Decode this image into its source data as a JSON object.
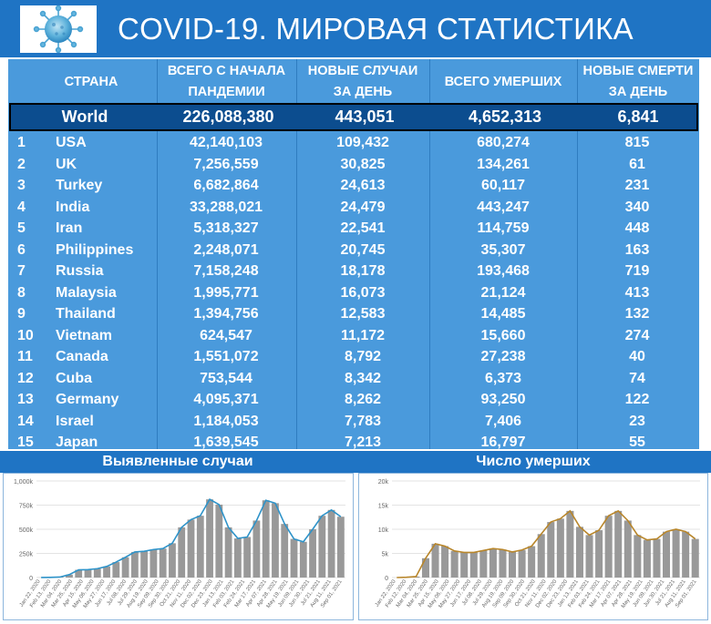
{
  "header": {
    "title": "COVID-19. МИРОВАЯ СТАТИСТИКА",
    "logo_icon": "coronavirus-icon",
    "bg_color": "#1f74c4"
  },
  "table": {
    "columns": {
      "country": "СТРАНА",
      "total_line1": "ВСЕГО С НАЧАЛА",
      "total_line2": "ПАНДЕМИИ",
      "new_line1": "НОВЫЕ СЛУЧАИ",
      "new_line2": "ЗА ДЕНЬ",
      "deaths": "ВСЕГО УМЕРШИХ",
      "newd_line1": "НОВЫЕ СМЕРТИ",
      "newd_line2": "ЗА ДЕНЬ"
    },
    "world": {
      "name": "World",
      "total": "226,088,380",
      "new_cases": "443,051",
      "deaths": "4,652,313",
      "new_deaths": "6,841"
    },
    "rows": [
      {
        "rank": "1",
        "country": "USA",
        "total": "42,140,103",
        "new_cases": "109,432",
        "deaths": "680,274",
        "new_deaths": "815"
      },
      {
        "rank": "2",
        "country": "UK",
        "total": "7,256,559",
        "new_cases": "30,825",
        "deaths": "134,261",
        "new_deaths": "61"
      },
      {
        "rank": "3",
        "country": "Turkey",
        "total": "6,682,864",
        "new_cases": "24,613",
        "deaths": "60,117",
        "new_deaths": "231"
      },
      {
        "rank": "4",
        "country": "India",
        "total": "33,288,021",
        "new_cases": "24,479",
        "deaths": "443,247",
        "new_deaths": "340"
      },
      {
        "rank": "5",
        "country": "Iran",
        "total": "5,318,327",
        "new_cases": "22,541",
        "deaths": "114,759",
        "new_deaths": "448"
      },
      {
        "rank": "6",
        "country": "Philippines",
        "total": "2,248,071",
        "new_cases": "20,745",
        "deaths": "35,307",
        "new_deaths": "163"
      },
      {
        "rank": "7",
        "country": "Russia",
        "total": "7,158,248",
        "new_cases": "18,178",
        "deaths": "193,468",
        "new_deaths": "719"
      },
      {
        "rank": "8",
        "country": "Malaysia",
        "total": "1,995,771",
        "new_cases": "16,073",
        "deaths": "21,124",
        "new_deaths": "413"
      },
      {
        "rank": "9",
        "country": "Thailand",
        "total": "1,394,756",
        "new_cases": "12,583",
        "deaths": "14,485",
        "new_deaths": "132"
      },
      {
        "rank": "10",
        "country": "Vietnam",
        "total": "624,547",
        "new_cases": "11,172",
        "deaths": "15,660",
        "new_deaths": "274"
      },
      {
        "rank": "11",
        "country": "Canada",
        "total": "1,551,072",
        "new_cases": "8,792",
        "deaths": "27,238",
        "new_deaths": "40"
      },
      {
        "rank": "12",
        "country": "Cuba",
        "total": "753,544",
        "new_cases": "8,342",
        "deaths": "6,373",
        "new_deaths": "74"
      },
      {
        "rank": "13",
        "country": "Germany",
        "total": "4,095,371",
        "new_cases": "8,262",
        "deaths": "93,250",
        "new_deaths": "122"
      },
      {
        "rank": "14",
        "country": "Israel",
        "total": "1,184,053",
        "new_cases": "7,783",
        "deaths": "7,406",
        "new_deaths": "23"
      },
      {
        "rank": "15",
        "country": "Japan",
        "total": "1,639,545",
        "new_cases": "7,213",
        "deaths": "16,797",
        "new_deaths": "55"
      }
    ],
    "colors": {
      "body": "#4a9adc",
      "world": "#0c4d8f"
    }
  },
  "chart_data": [
    {
      "type": "bar",
      "title": "Выявленные случаи",
      "ylim": [
        0,
        1000000
      ],
      "yticks": [
        0,
        250000,
        500000,
        750000,
        1000000
      ],
      "ytick_labels": [
        "0",
        "250k",
        "500k",
        "750k",
        "1,000k"
      ],
      "x_tick_labels": [
        "Jan 22, 2020",
        "Feb 13, 2020",
        "Mar 04, 2020",
        "Mar 25, 2020",
        "Apr 15, 2020",
        "May 06, 2020",
        "May 27, 2020",
        "Jun 17, 2020",
        "Jul 08, 2020",
        "Jul 29, 2020",
        "Aug 19, 2020",
        "Sep 09, 2020",
        "Sep 30, 2020",
        "Oct 21, 2020",
        "Nov 11, 2020",
        "Dec 02, 2020",
        "Dec 23, 2020",
        "Jan 13, 2021",
        "Feb 03, 2021",
        "Feb 24, 2021",
        "Mar 17, 2021",
        "Apr 07, 2021",
        "Apr 28, 2021",
        "May 19, 2021",
        "Jun 09, 2021",
        "Jun 30, 2021",
        "Jul 21, 2021",
        "Aug 11, 2021",
        "Sep 01, 2021"
      ],
      "series": [
        {
          "kind": "bars",
          "color": "#999999",
          "values": [
            1000,
            2000,
            5000,
            30000,
            80000,
            82000,
            92000,
            115000,
            160000,
            210000,
            265000,
            272000,
            290000,
            300000,
            355000,
            520000,
            600000,
            640000,
            810000,
            755000,
            520000,
            405000,
            420000,
            590000,
            800000,
            770000,
            555000,
            400000,
            370000,
            500000,
            640000,
            700000,
            630000
          ]
        },
        {
          "kind": "line",
          "color": "#2e93c9",
          "values": [
            1000,
            2000,
            5000,
            30000,
            80000,
            82000,
            92000,
            115000,
            160000,
            210000,
            265000,
            272000,
            290000,
            300000,
            355000,
            520000,
            600000,
            640000,
            810000,
            755000,
            520000,
            405000,
            420000,
            590000,
            800000,
            770000,
            555000,
            400000,
            370000,
            500000,
            640000,
            700000,
            630000
          ]
        }
      ]
    },
    {
      "type": "bar",
      "title": "Число умерших",
      "ylim": [
        0,
        20000
      ],
      "yticks": [
        0,
        5000,
        10000,
        15000,
        20000
      ],
      "ytick_labels": [
        "0",
        "5k",
        "10k",
        "15k",
        "20k"
      ],
      "x_tick_labels": [
        "Jan 22, 2020",
        "Feb 12, 2020",
        "Mar 04, 2020",
        "Mar 25, 2020",
        "Apr 15, 2020",
        "May 06, 2020",
        "May 27, 2020",
        "Jun 17, 2020",
        "Jul 08, 2020",
        "Jul 29, 2020",
        "Aug 19, 2020",
        "Sep 09, 2020",
        "Sep 30, 2020",
        "Oct 21, 2020",
        "Nov 11, 2020",
        "Dec 02, 2020",
        "Dec 23, 2020",
        "Jan 13, 2021",
        "Feb 03, 2021",
        "Feb 24, 2021",
        "Mar 17, 2021",
        "Apr 07, 2021",
        "Apr 28, 2021",
        "May 19, 2021",
        "Jun 09, 2021",
        "Jun 30, 2021",
        "Jul 21, 2021",
        "Aug 11, 2021",
        "Sep 01, 2021"
      ],
      "series": [
        {
          "kind": "bars",
          "color": "#999999",
          "values": [
            0,
            50,
            200,
            4000,
            7000,
            6500,
            5500,
            5200,
            5200,
            5600,
            6000,
            5800,
            5300,
            5700,
            6500,
            9000,
            11500,
            12200,
            13800,
            10500,
            8800,
            9800,
            12800,
            13800,
            11800,
            8800,
            7800,
            8000,
            9500,
            10000,
            9500,
            8000
          ]
        },
        {
          "kind": "line",
          "color": "#b8862b",
          "values": [
            0,
            50,
            200,
            4000,
            7000,
            6500,
            5500,
            5200,
            5200,
            5600,
            6000,
            5800,
            5300,
            5700,
            6500,
            9000,
            11500,
            12200,
            13800,
            10500,
            8800,
            9800,
            12800,
            13800,
            11800,
            8800,
            7800,
            8000,
            9500,
            10000,
            9500,
            8000
          ]
        }
      ]
    }
  ]
}
